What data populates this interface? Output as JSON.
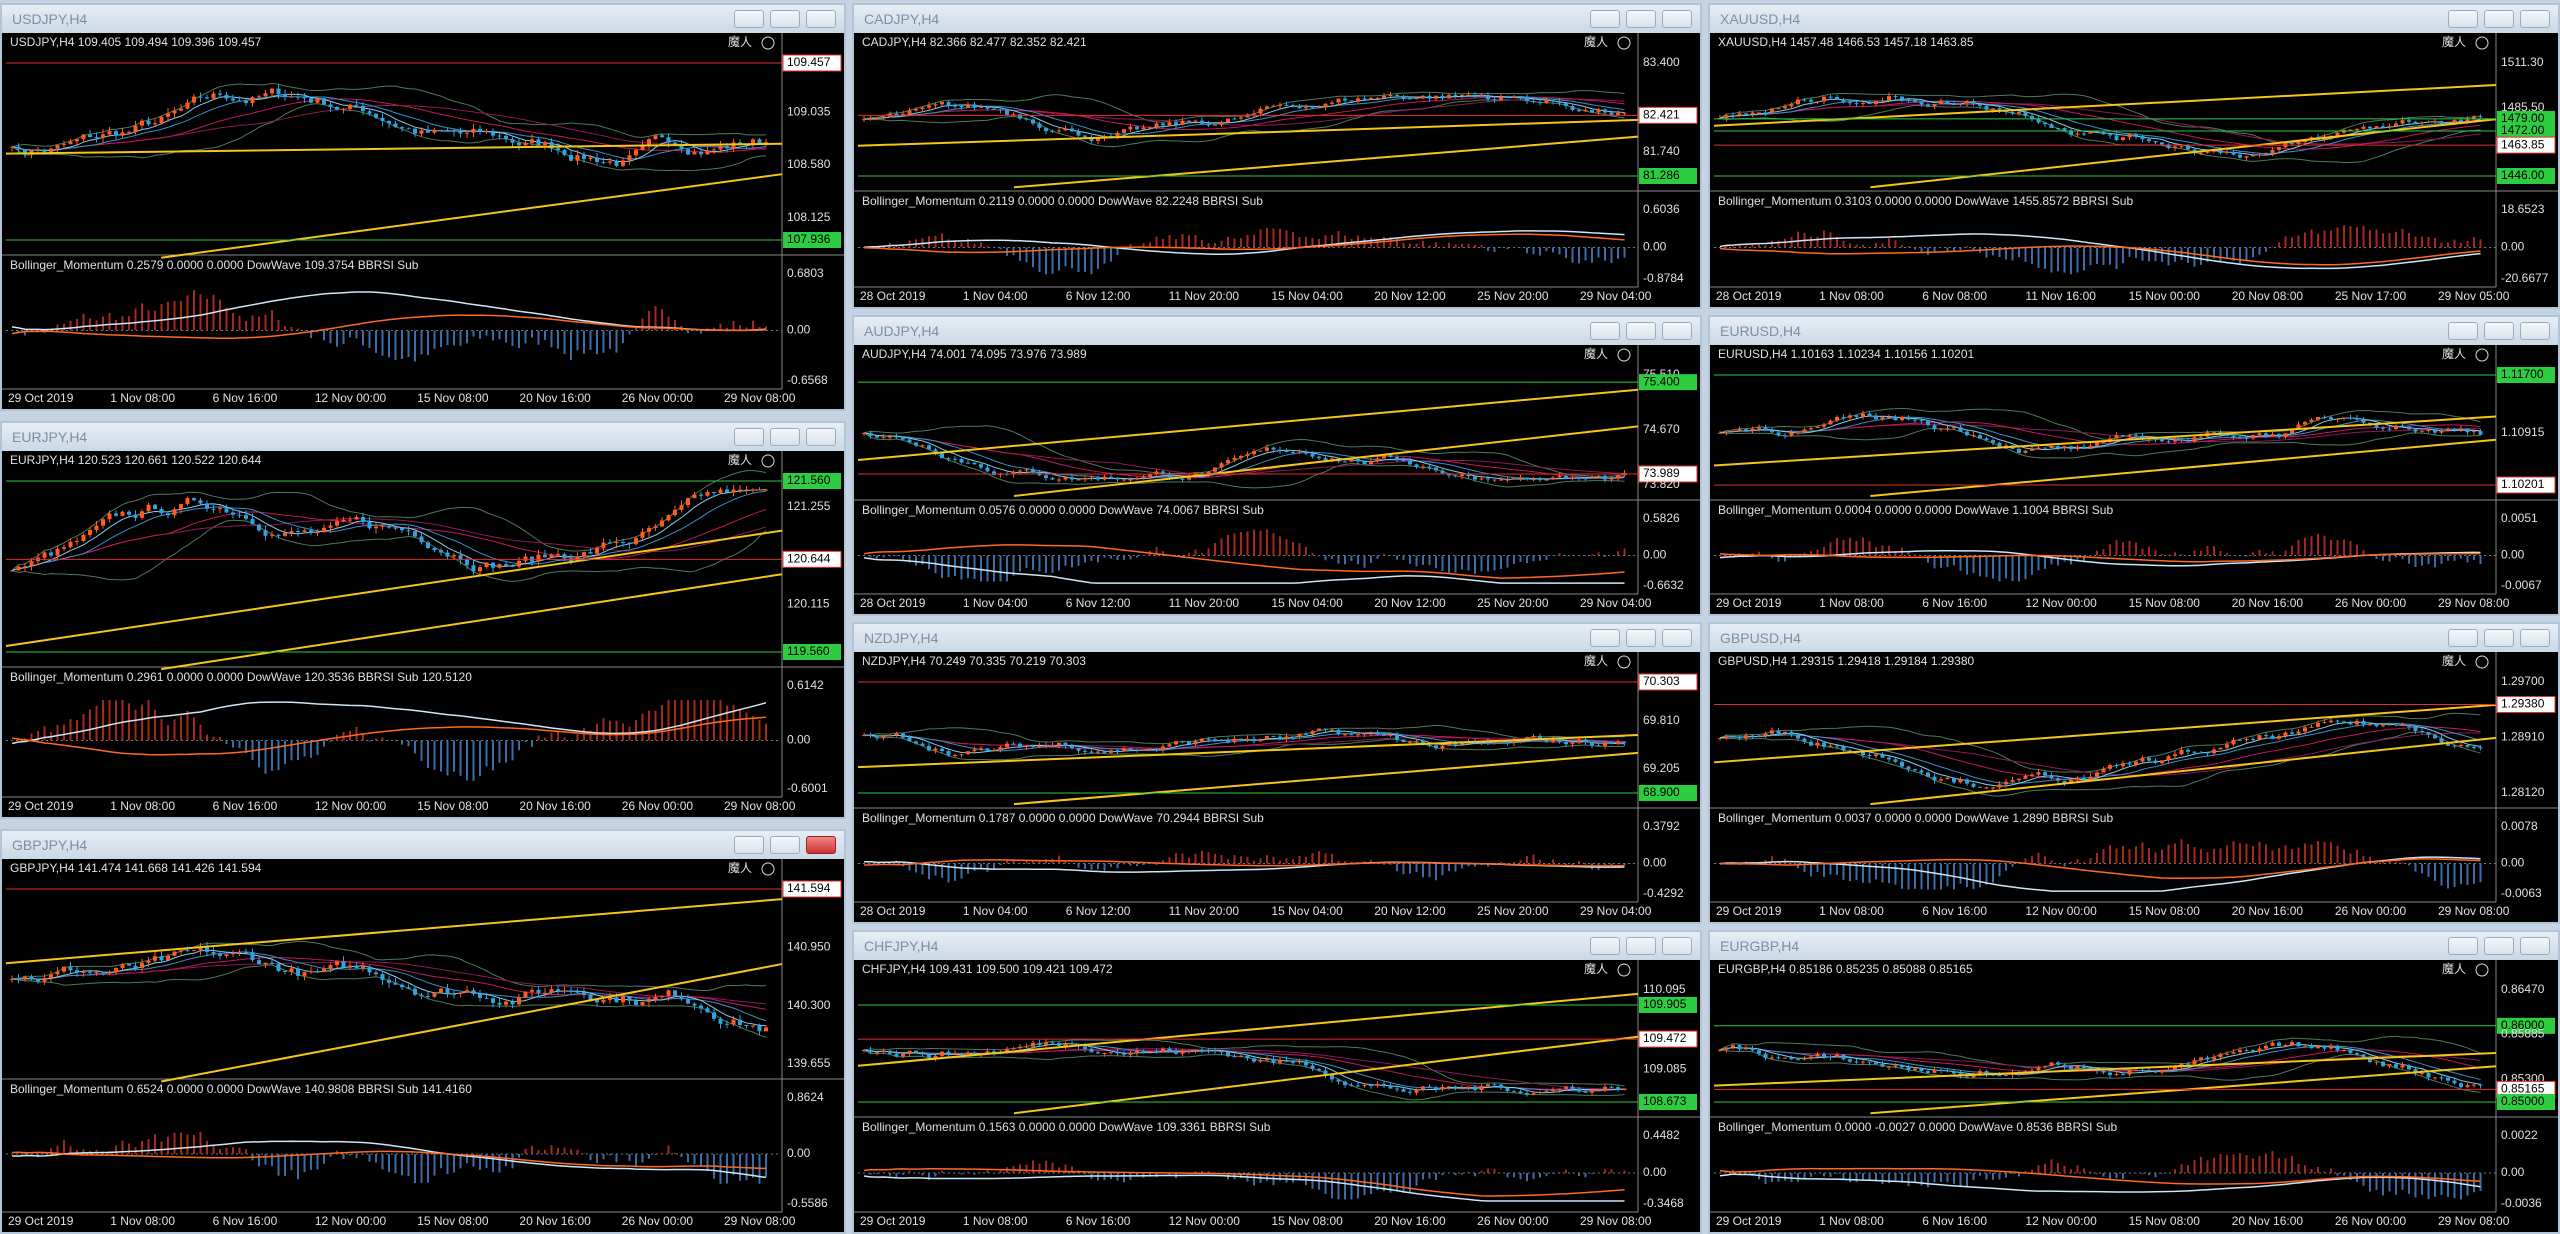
{
  "windows": [
    {
      "title": "USDJPY,H4",
      "info": "USDJPY,H4  109.405 109.494 109.396 109.457",
      "badge": "魔人",
      "prices": [
        {
          "text": "109.457",
          "style": "bid"
        },
        {
          "text": "109.035",
          "style": "plain"
        },
        {
          "text": "108.580",
          "style": "plain"
        },
        {
          "text": "108.125",
          "style": "plain"
        },
        {
          "text": "107.936",
          "style": "level"
        }
      ],
      "indicator": "Bollinger_Momentum 0.2579 0.0000 0.0000  DowWave 109.3754  BBRSI Sub",
      "sub_levels": [
        "0.6803",
        "0.00",
        "-0.6568"
      ],
      "times": [
        "29 Oct 2019",
        "1 Nov 08:00",
        "6 Nov 16:00",
        "12 Nov 00:00",
        "15 Nov 08:00",
        "20 Nov 16:00",
        "26 Nov 00:00",
        "29 Nov 08:00"
      ]
    },
    {
      "title": "EURJPY,H4",
      "info": "EURJPY,H4  120.523 120.661 120.522 120.644",
      "badge": "魔人",
      "prices": [
        {
          "text": "121.560",
          "style": "level"
        },
        {
          "text": "121.255",
          "style": "plain"
        },
        {
          "text": "120.644",
          "style": "bid"
        },
        {
          "text": "120.115",
          "style": "plain"
        },
        {
          "text": "119.560",
          "style": "level"
        }
      ],
      "indicator": "Bollinger_Momentum 0.2961 0.0000 0.0000  DowWave 120.3536  BBRSI Sub 120.5120",
      "sub_levels": [
        "0.6142",
        "0.00",
        "-0.6001"
      ],
      "times": [
        "29 Oct 2019",
        "1 Nov 08:00",
        "6 Nov 16:00",
        "12 Nov 00:00",
        "15 Nov 08:00",
        "20 Nov 16:00",
        "26 Nov 00:00",
        "29 Nov 08:00"
      ]
    },
    {
      "title": "GBPJPY,H4",
      "info": "GBPJPY,H4  141.474 141.668 141.426 141.594",
      "badge": "魔人",
      "prices": [
        {
          "text": "141.594",
          "style": "bid"
        },
        {
          "text": "140.950",
          "style": "plain"
        },
        {
          "text": "140.300",
          "style": "plain"
        },
        {
          "text": "139.655",
          "style": "plain"
        }
      ],
      "indicator": "Bollinger_Momentum 0.6524 0.0000 0.0000  DowWave 140.9808  BBRSI Sub 141.4160",
      "sub_levels": [
        "0.8624",
        "0.00",
        "-0.5586"
      ],
      "times": [
        "29 Oct 2019",
        "1 Nov 08:00",
        "6 Nov 16:00",
        "12 Nov 00:00",
        "15 Nov 08:00",
        "20 Nov 16:00",
        "26 Nov 00:00",
        "29 Nov 08:00"
      ]
    },
    {
      "title": "CADJPY,H4",
      "info": "CADJPY,H4  82.366 82.477 82.352 82.421",
      "badge": "魔人",
      "prices": [
        {
          "text": "83.400",
          "style": "plain"
        },
        {
          "text": "82.421",
          "style": "bid"
        },
        {
          "text": "81.740",
          "style": "plain"
        },
        {
          "text": "81.286",
          "style": "level"
        }
      ],
      "indicator": "Bollinger_Momentum 0.2119 0.0000 0.0000  DowWave 82.2248  BBRSI Sub",
      "sub_levels": [
        "0.6036",
        "0.00",
        "-0.8784"
      ],
      "times": [
        "28 Oct 2019",
        "1 Nov 04:00",
        "6 Nov 12:00",
        "11 Nov 20:00",
        "15 Nov 04:00",
        "20 Nov 12:00",
        "25 Nov 20:00",
        "29 Nov 04:00"
      ]
    },
    {
      "title": "AUDJPY,H4",
      "info": "AUDJPY,H4  74.001 74.095 73.976 73.989",
      "badge": "魔人",
      "prices": [
        {
          "text": "75.510",
          "style": "plain"
        },
        {
          "text": "75.400",
          "style": "level"
        },
        {
          "text": "74.670",
          "style": "plain"
        },
        {
          "text": "73.989",
          "style": "bid"
        },
        {
          "text": "73.820",
          "style": "plain"
        }
      ],
      "indicator": "Bollinger_Momentum 0.0576 0.0000 0.0000  DowWave 74.0067  BBRSI Sub",
      "sub_levels": [
        "0.5826",
        "0.00",
        "-0.6632"
      ],
      "times": [
        "28 Oct 2019",
        "1 Nov 04:00",
        "6 Nov 12:00",
        "11 Nov 20:00",
        "15 Nov 04:00",
        "20 Nov 12:00",
        "25 Nov 20:00",
        "29 Nov 04:00"
      ]
    },
    {
      "title": "NZDJPY,H4",
      "info": "NZDJPY,H4  70.249 70.335 70.219 70.303",
      "badge": "魔人",
      "prices": [
        {
          "text": "70.303",
          "style": "bid"
        },
        {
          "text": "69.810",
          "style": "plain"
        },
        {
          "text": "69.205",
          "style": "plain"
        },
        {
          "text": "68.900",
          "style": "level"
        }
      ],
      "indicator": "Bollinger_Momentum 0.1787 0.0000 0.0000  DowWave 70.2944  BBRSI Sub",
      "sub_levels": [
        "0.3792",
        "0.00",
        "-0.4292"
      ],
      "times": [
        "28 Oct 2019",
        "1 Nov 04:00",
        "6 Nov 12:00",
        "11 Nov 20:00",
        "15 Nov 04:00",
        "20 Nov 12:00",
        "25 Nov 20:00",
        "29 Nov 04:00"
      ]
    },
    {
      "title": "CHFJPY,H4",
      "info": "CHFJPY,H4  109.431 109.500 109.421 109.472",
      "badge": "魔人",
      "prices": [
        {
          "text": "110.095",
          "style": "plain"
        },
        {
          "text": "109.905",
          "style": "level"
        },
        {
          "text": "109.472",
          "style": "bid"
        },
        {
          "text": "109.085",
          "style": "plain"
        },
        {
          "text": "108.673",
          "style": "level"
        }
      ],
      "indicator": "Bollinger_Momentum 0.1563 0.0000 0.0000  DowWave 109.3361  BBRSI Sub",
      "sub_levels": [
        "0.4482",
        "0.00",
        "-0.3468"
      ],
      "times": [
        "29 Oct 2019",
        "1 Nov 08:00",
        "6 Nov 16:00",
        "12 Nov 00:00",
        "15 Nov 08:00",
        "20 Nov 16:00",
        "26 Nov 00:00",
        "29 Nov 08:00"
      ]
    },
    {
      "title": "XAUUSD,H4",
      "info": "XAUUSD,H4  1457.48 1466.53 1457.18 1463.85",
      "badge": "魔人",
      "prices": [
        {
          "text": "1511.30",
          "style": "plain"
        },
        {
          "text": "1485.50",
          "style": "plain"
        },
        {
          "text": "1479.00",
          "style": "level"
        },
        {
          "text": "1472.00",
          "style": "level"
        },
        {
          "text": "1463.85",
          "style": "bid"
        },
        {
          "text": "1446.00",
          "style": "level"
        }
      ],
      "indicator": "Bollinger_Momentum 0.3103 0.0000 0.0000  DowWave 1455.8572  BBRSI Sub",
      "sub_levels": [
        "18.6523",
        "0.00",
        "-20.6677"
      ],
      "times": [
        "28 Oct 2019",
        "1 Nov 08:00",
        "6 Nov 08:00",
        "11 Nov 16:00",
        "15 Nov 00:00",
        "20 Nov 08:00",
        "25 Nov 17:00",
        "29 Nov 05:00"
      ]
    },
    {
      "title": "EURUSD,H4",
      "info": "EURUSD,H4  1.10163 1.10234 1.10156 1.10201",
      "badge": "魔人",
      "prices": [
        {
          "text": "1.11700",
          "style": "level"
        },
        {
          "text": "1.10915",
          "style": "plain"
        },
        {
          "text": "1.10201",
          "style": "bid"
        }
      ],
      "indicator": "Bollinger_Momentum 0.0004 0.0000 0.0000  DowWave 1.1004  BBRSI Sub",
      "sub_levels": [
        "0.0051",
        "0.00",
        "-0.0067"
      ],
      "times": [
        "29 Oct 2019",
        "1 Nov 08:00",
        "6 Nov 16:00",
        "12 Nov 00:00",
        "15 Nov 08:00",
        "20 Nov 16:00",
        "26 Nov 00:00",
        "29 Nov 08:00"
      ]
    },
    {
      "title": "GBPUSD,H4",
      "info": "GBPUSD,H4  1.29315 1.29418 1.29184 1.29380",
      "badge": "魔人",
      "prices": [
        {
          "text": "1.29700",
          "style": "plain"
        },
        {
          "text": "1.29380",
          "style": "bid"
        },
        {
          "text": "1.28910",
          "style": "plain"
        },
        {
          "text": "1.28120",
          "style": "plain"
        }
      ],
      "indicator": "Bollinger_Momentum 0.0037 0.0000 0.0000  DowWave 1.2890  BBRSI Sub",
      "sub_levels": [
        "0.0078",
        "0.00",
        "-0.0063"
      ],
      "times": [
        "29 Oct 2019",
        "1 Nov 08:00",
        "6 Nov 16:00",
        "12 Nov 00:00",
        "15 Nov 08:00",
        "20 Nov 16:00",
        "26 Nov 00:00",
        "29 Nov 08:00"
      ]
    },
    {
      "title": "EURGBP,H4",
      "info": "EURGBP,H4  0.85186 0.85235 0.85088 0.85165",
      "badge": "魔人",
      "prices": [
        {
          "text": "0.86470",
          "style": "plain"
        },
        {
          "text": "0.86000",
          "style": "level"
        },
        {
          "text": "0.85885",
          "style": "plain"
        },
        {
          "text": "0.85300",
          "style": "plain"
        },
        {
          "text": "0.85165",
          "style": "bid"
        },
        {
          "text": "0.85000",
          "style": "level"
        }
      ],
      "indicator": "Bollinger_Momentum 0.0000 -0.0027 0.0000  DowWave 0.8536  BBRSI Sub",
      "sub_levels": [
        "0.0022",
        "0.00",
        "-0.0036"
      ],
      "times": [
        "29 Oct 2019",
        "1 Nov 08:00",
        "6 Nov 16:00",
        "12 Nov 00:00",
        "15 Nov 08:00",
        "20 Nov 16:00",
        "26 Nov 00:00",
        "29 Nov 08:00"
      ]
    }
  ]
}
